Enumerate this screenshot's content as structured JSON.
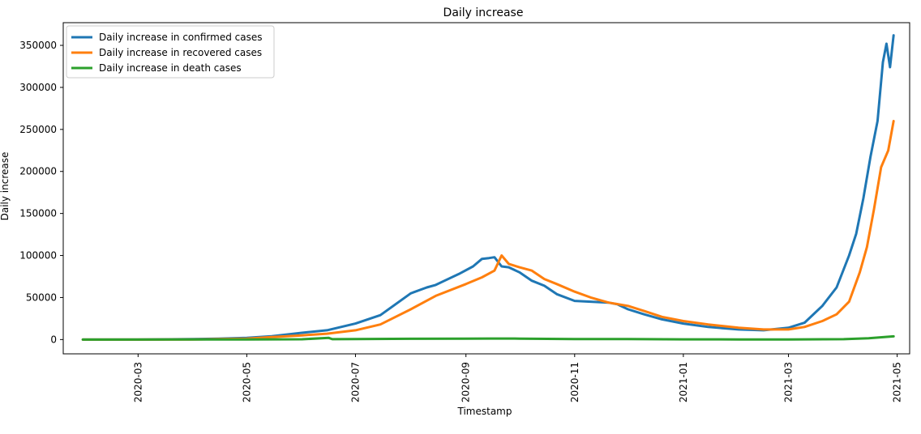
{
  "chart_data": {
    "type": "line",
    "title": "Daily increase",
    "xlabel": "Timestamp",
    "ylabel": "Daily increase",
    "xlim": [
      "2020-01-19",
      "2021-05-08"
    ],
    "ylim": [
      -17000,
      377000
    ],
    "xticks": [
      {
        "date": "2020-03-01",
        "label": "2020-03"
      },
      {
        "date": "2020-05-01",
        "label": "2020-05"
      },
      {
        "date": "2020-07-01",
        "label": "2020-07"
      },
      {
        "date": "2020-09-01",
        "label": "2020-09"
      },
      {
        "date": "2020-11-01",
        "label": "2020-11"
      },
      {
        "date": "2021-01-01",
        "label": "2021-01"
      },
      {
        "date": "2021-03-01",
        "label": "2021-03"
      },
      {
        "date": "2021-05-01",
        "label": "2021-05"
      }
    ],
    "yticks": [
      0,
      50000,
      100000,
      150000,
      200000,
      250000,
      300000,
      350000
    ],
    "grid": false,
    "legend_position": "upper-left",
    "series": [
      {
        "name": "Daily increase in confirmed cases",
        "color": "#1f77b4",
        "points": [
          [
            "2020-01-30",
            0
          ],
          [
            "2020-03-01",
            0
          ],
          [
            "2020-04-01",
            600
          ],
          [
            "2020-04-15",
            1000
          ],
          [
            "2020-05-01",
            2000
          ],
          [
            "2020-05-15",
            4000
          ],
          [
            "2020-06-01",
            8000
          ],
          [
            "2020-06-15",
            11000
          ],
          [
            "2020-07-01",
            19000
          ],
          [
            "2020-07-15",
            29000
          ],
          [
            "2020-08-01",
            55000
          ],
          [
            "2020-08-10",
            62000
          ],
          [
            "2020-08-15",
            65000
          ],
          [
            "2020-08-20",
            70000
          ],
          [
            "2020-08-28",
            78000
          ],
          [
            "2020-09-05",
            87000
          ],
          [
            "2020-09-10",
            96000
          ],
          [
            "2020-09-14",
            97000
          ],
          [
            "2020-09-17",
            97900
          ],
          [
            "2020-09-21",
            87000
          ],
          [
            "2020-09-25",
            86000
          ],
          [
            "2020-10-01",
            80000
          ],
          [
            "2020-10-08",
            70000
          ],
          [
            "2020-10-15",
            64000
          ],
          [
            "2020-10-22",
            54000
          ],
          [
            "2020-11-01",
            46000
          ],
          [
            "2020-11-10",
            45000
          ],
          [
            "2020-11-20",
            44000
          ],
          [
            "2020-11-25",
            42000
          ],
          [
            "2020-12-01",
            36000
          ],
          [
            "2020-12-10",
            30000
          ],
          [
            "2020-12-20",
            24000
          ],
          [
            "2021-01-01",
            19000
          ],
          [
            "2021-01-15",
            15000
          ],
          [
            "2021-02-01",
            12000
          ],
          [
            "2021-02-15",
            11000
          ],
          [
            "2021-03-01",
            14000
          ],
          [
            "2021-03-10",
            20000
          ],
          [
            "2021-03-20",
            40000
          ],
          [
            "2021-03-28",
            62000
          ],
          [
            "2021-04-04",
            100000
          ],
          [
            "2021-04-08",
            126000
          ],
          [
            "2021-04-12",
            168000
          ],
          [
            "2021-04-16",
            217000
          ],
          [
            "2021-04-20",
            260000
          ],
          [
            "2021-04-23",
            330000
          ],
          [
            "2021-04-25",
            352000
          ],
          [
            "2021-04-27",
            324000
          ],
          [
            "2021-04-29",
            362000
          ]
        ]
      },
      {
        "name": "Daily increase in recovered cases",
        "color": "#ff7f0e",
        "points": [
          [
            "2020-01-30",
            0
          ],
          [
            "2020-03-01",
            0
          ],
          [
            "2020-04-01",
            100
          ],
          [
            "2020-04-15",
            500
          ],
          [
            "2020-05-01",
            1000
          ],
          [
            "2020-05-15",
            3000
          ],
          [
            "2020-06-01",
            5000
          ],
          [
            "2020-06-15",
            7000
          ],
          [
            "2020-07-01",
            11000
          ],
          [
            "2020-07-15",
            18000
          ],
          [
            "2020-08-01",
            36000
          ],
          [
            "2020-08-15",
            52000
          ],
          [
            "2020-09-01",
            66000
          ],
          [
            "2020-09-10",
            74000
          ],
          [
            "2020-09-17",
            82000
          ],
          [
            "2020-09-21",
            100000
          ],
          [
            "2020-09-25",
            90000
          ],
          [
            "2020-10-01",
            86000
          ],
          [
            "2020-10-08",
            82000
          ],
          [
            "2020-10-15",
            72000
          ],
          [
            "2020-10-22",
            66000
          ],
          [
            "2020-11-01",
            57000
          ],
          [
            "2020-11-10",
            50000
          ],
          [
            "2020-11-20",
            44000
          ],
          [
            "2020-12-01",
            40000
          ],
          [
            "2020-12-10",
            34000
          ],
          [
            "2020-12-20",
            27000
          ],
          [
            "2021-01-01",
            22000
          ],
          [
            "2021-01-15",
            18000
          ],
          [
            "2021-02-01",
            14000
          ],
          [
            "2021-02-15",
            12000
          ],
          [
            "2021-03-01",
            12000
          ],
          [
            "2021-03-10",
            15000
          ],
          [
            "2021-03-20",
            22000
          ],
          [
            "2021-03-28",
            30000
          ],
          [
            "2021-04-04",
            45000
          ],
          [
            "2021-04-10",
            80000
          ],
          [
            "2021-04-14",
            110000
          ],
          [
            "2021-04-18",
            155000
          ],
          [
            "2021-04-22",
            205000
          ],
          [
            "2021-04-26",
            225000
          ],
          [
            "2021-04-29",
            260000
          ]
        ]
      },
      {
        "name": "Daily increase in death cases",
        "color": "#2ca02c",
        "points": [
          [
            "2020-01-30",
            0
          ],
          [
            "2020-04-01",
            50
          ],
          [
            "2020-05-01",
            100
          ],
          [
            "2020-06-01",
            300
          ],
          [
            "2020-06-16",
            2000
          ],
          [
            "2020-06-18",
            400
          ],
          [
            "2020-07-01",
            500
          ],
          [
            "2020-08-01",
            900
          ],
          [
            "2020-09-01",
            1100
          ],
          [
            "2020-09-15",
            1200
          ],
          [
            "2020-10-01",
            1100
          ],
          [
            "2020-11-01",
            600
          ],
          [
            "2020-12-01",
            500
          ],
          [
            "2021-01-01",
            250
          ],
          [
            "2021-02-01",
            100
          ],
          [
            "2021-03-01",
            150
          ],
          [
            "2021-04-01",
            450
          ],
          [
            "2021-04-15",
            1500
          ],
          [
            "2021-04-29",
            3800
          ]
        ]
      }
    ]
  }
}
